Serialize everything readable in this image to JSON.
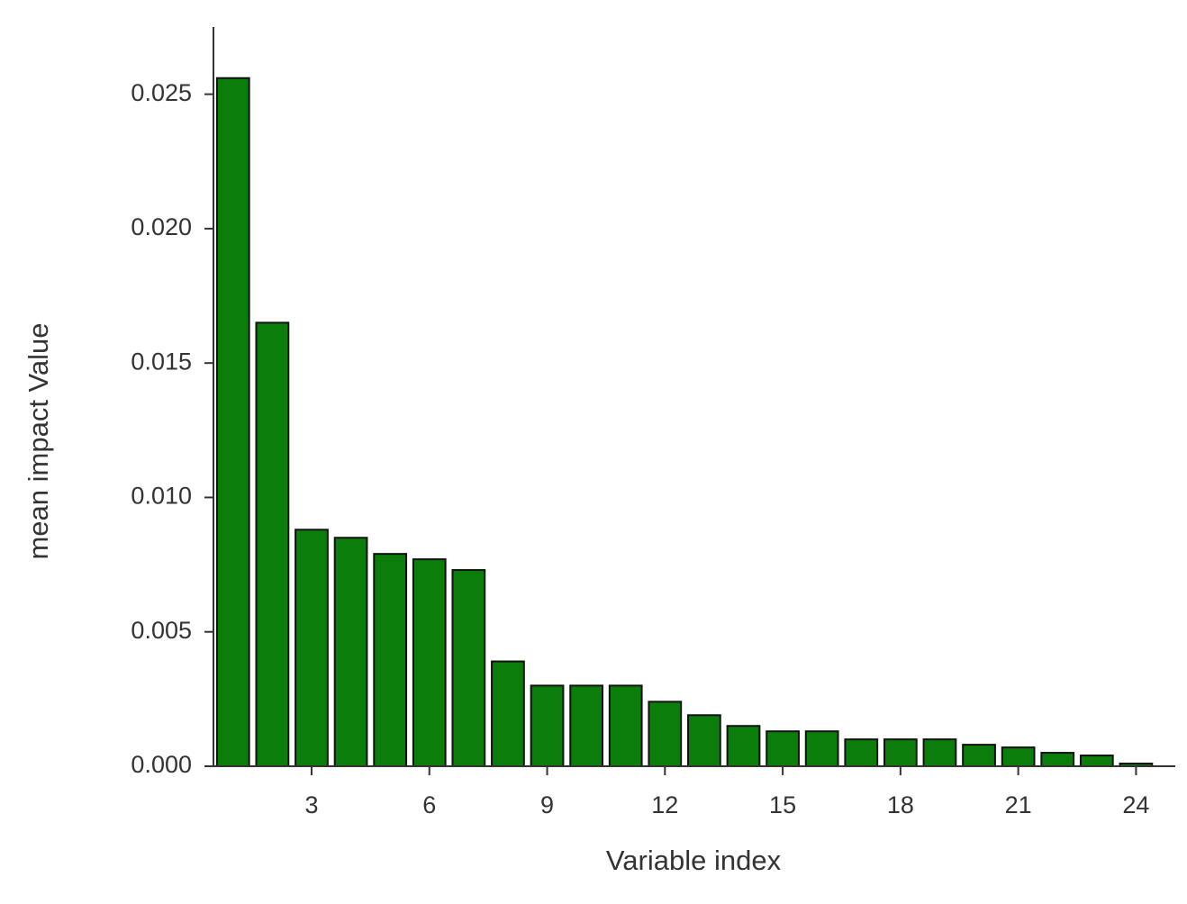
{
  "chart_data": {
    "type": "bar",
    "x_label": "Variable index",
    "y_label": "mean impact Value",
    "x": [
      1,
      2,
      3,
      4,
      5,
      6,
      7,
      8,
      9,
      10,
      11,
      12,
      13,
      14,
      15,
      16,
      17,
      18,
      19,
      20,
      21,
      22,
      23,
      24
    ],
    "values": [
      0.0256,
      0.0165,
      0.0088,
      0.0085,
      0.0079,
      0.0077,
      0.0073,
      0.0039,
      0.003,
      0.003,
      0.003,
      0.0024,
      0.0019,
      0.0015,
      0.0013,
      0.0013,
      0.001,
      0.001,
      0.001,
      0.0008,
      0.0007,
      0.0005,
      0.0004,
      0.0001
    ],
    "color": "#0a7d0a",
    "xlim": [
      0.5,
      25
    ],
    "xticks": [
      3,
      6,
      9,
      12,
      15,
      18,
      21,
      24
    ],
    "ylim": [
      0,
      0.0275
    ],
    "yticks": [
      {
        "value": 0,
        "label": "0.000"
      },
      0.005,
      {
        "value": 0.01,
        "label": "0.010"
      },
      0.015,
      {
        "value": 0.02,
        "label": "0.020"
      },
      0.025
    ],
    "grid": false
  }
}
